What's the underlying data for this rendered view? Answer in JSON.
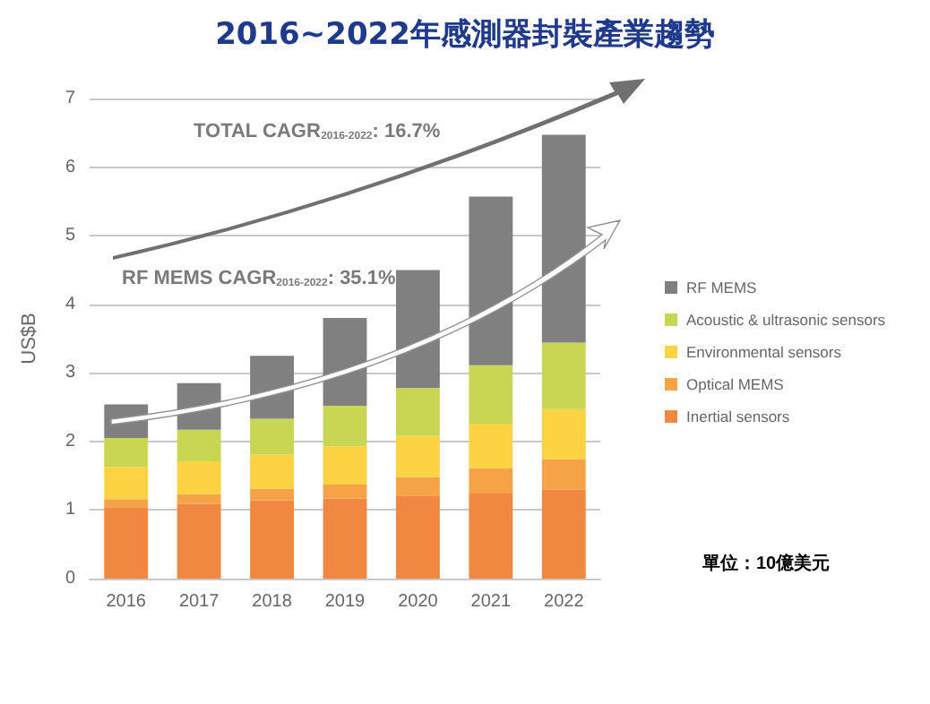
{
  "chart_data": {
    "type": "bar",
    "title": "2016~2022年感測器封裝產業趨勢",
    "ylabel": "US$B",
    "categories": [
      "2016",
      "2017",
      "2018",
      "2019",
      "2020",
      "2021",
      "2022"
    ],
    "stacked": true,
    "series": [
      {
        "name": "Inertial sensors",
        "color": "#f08841",
        "values": [
          1.04,
          1.09,
          1.14,
          1.17,
          1.21,
          1.24,
          1.3
        ]
      },
      {
        "name": "Optical MEMS",
        "color": "#f5a346",
        "values": [
          0.12,
          0.14,
          0.17,
          0.2,
          0.27,
          0.37,
          0.44
        ]
      },
      {
        "name": "Environmental sensors",
        "color": "#fdd243",
        "values": [
          0.47,
          0.48,
          0.5,
          0.56,
          0.6,
          0.65,
          0.73
        ]
      },
      {
        "name": "Acoustic & ultrasonic sensors",
        "color": "#c9d654",
        "values": [
          0.42,
          0.46,
          0.52,
          0.59,
          0.7,
          0.85,
          0.97
        ]
      },
      {
        "name": "RF MEMS",
        "color": "#808080",
        "values": [
          0.49,
          0.68,
          0.92,
          1.28,
          1.72,
          2.46,
          3.03
        ]
      }
    ],
    "ylim": [
      0,
      7
    ],
    "yticks": [
      0,
      1,
      2,
      3,
      4,
      5,
      6,
      7
    ],
    "grid": "y",
    "legend": "right",
    "annotations": [
      "TOTAL CAGR$_{2016-2022}$: 16.7%",
      "RF MEMS CAGR$_{2016-2022}$: 35.1%",
      "單位：10億美元"
    ]
  }
}
